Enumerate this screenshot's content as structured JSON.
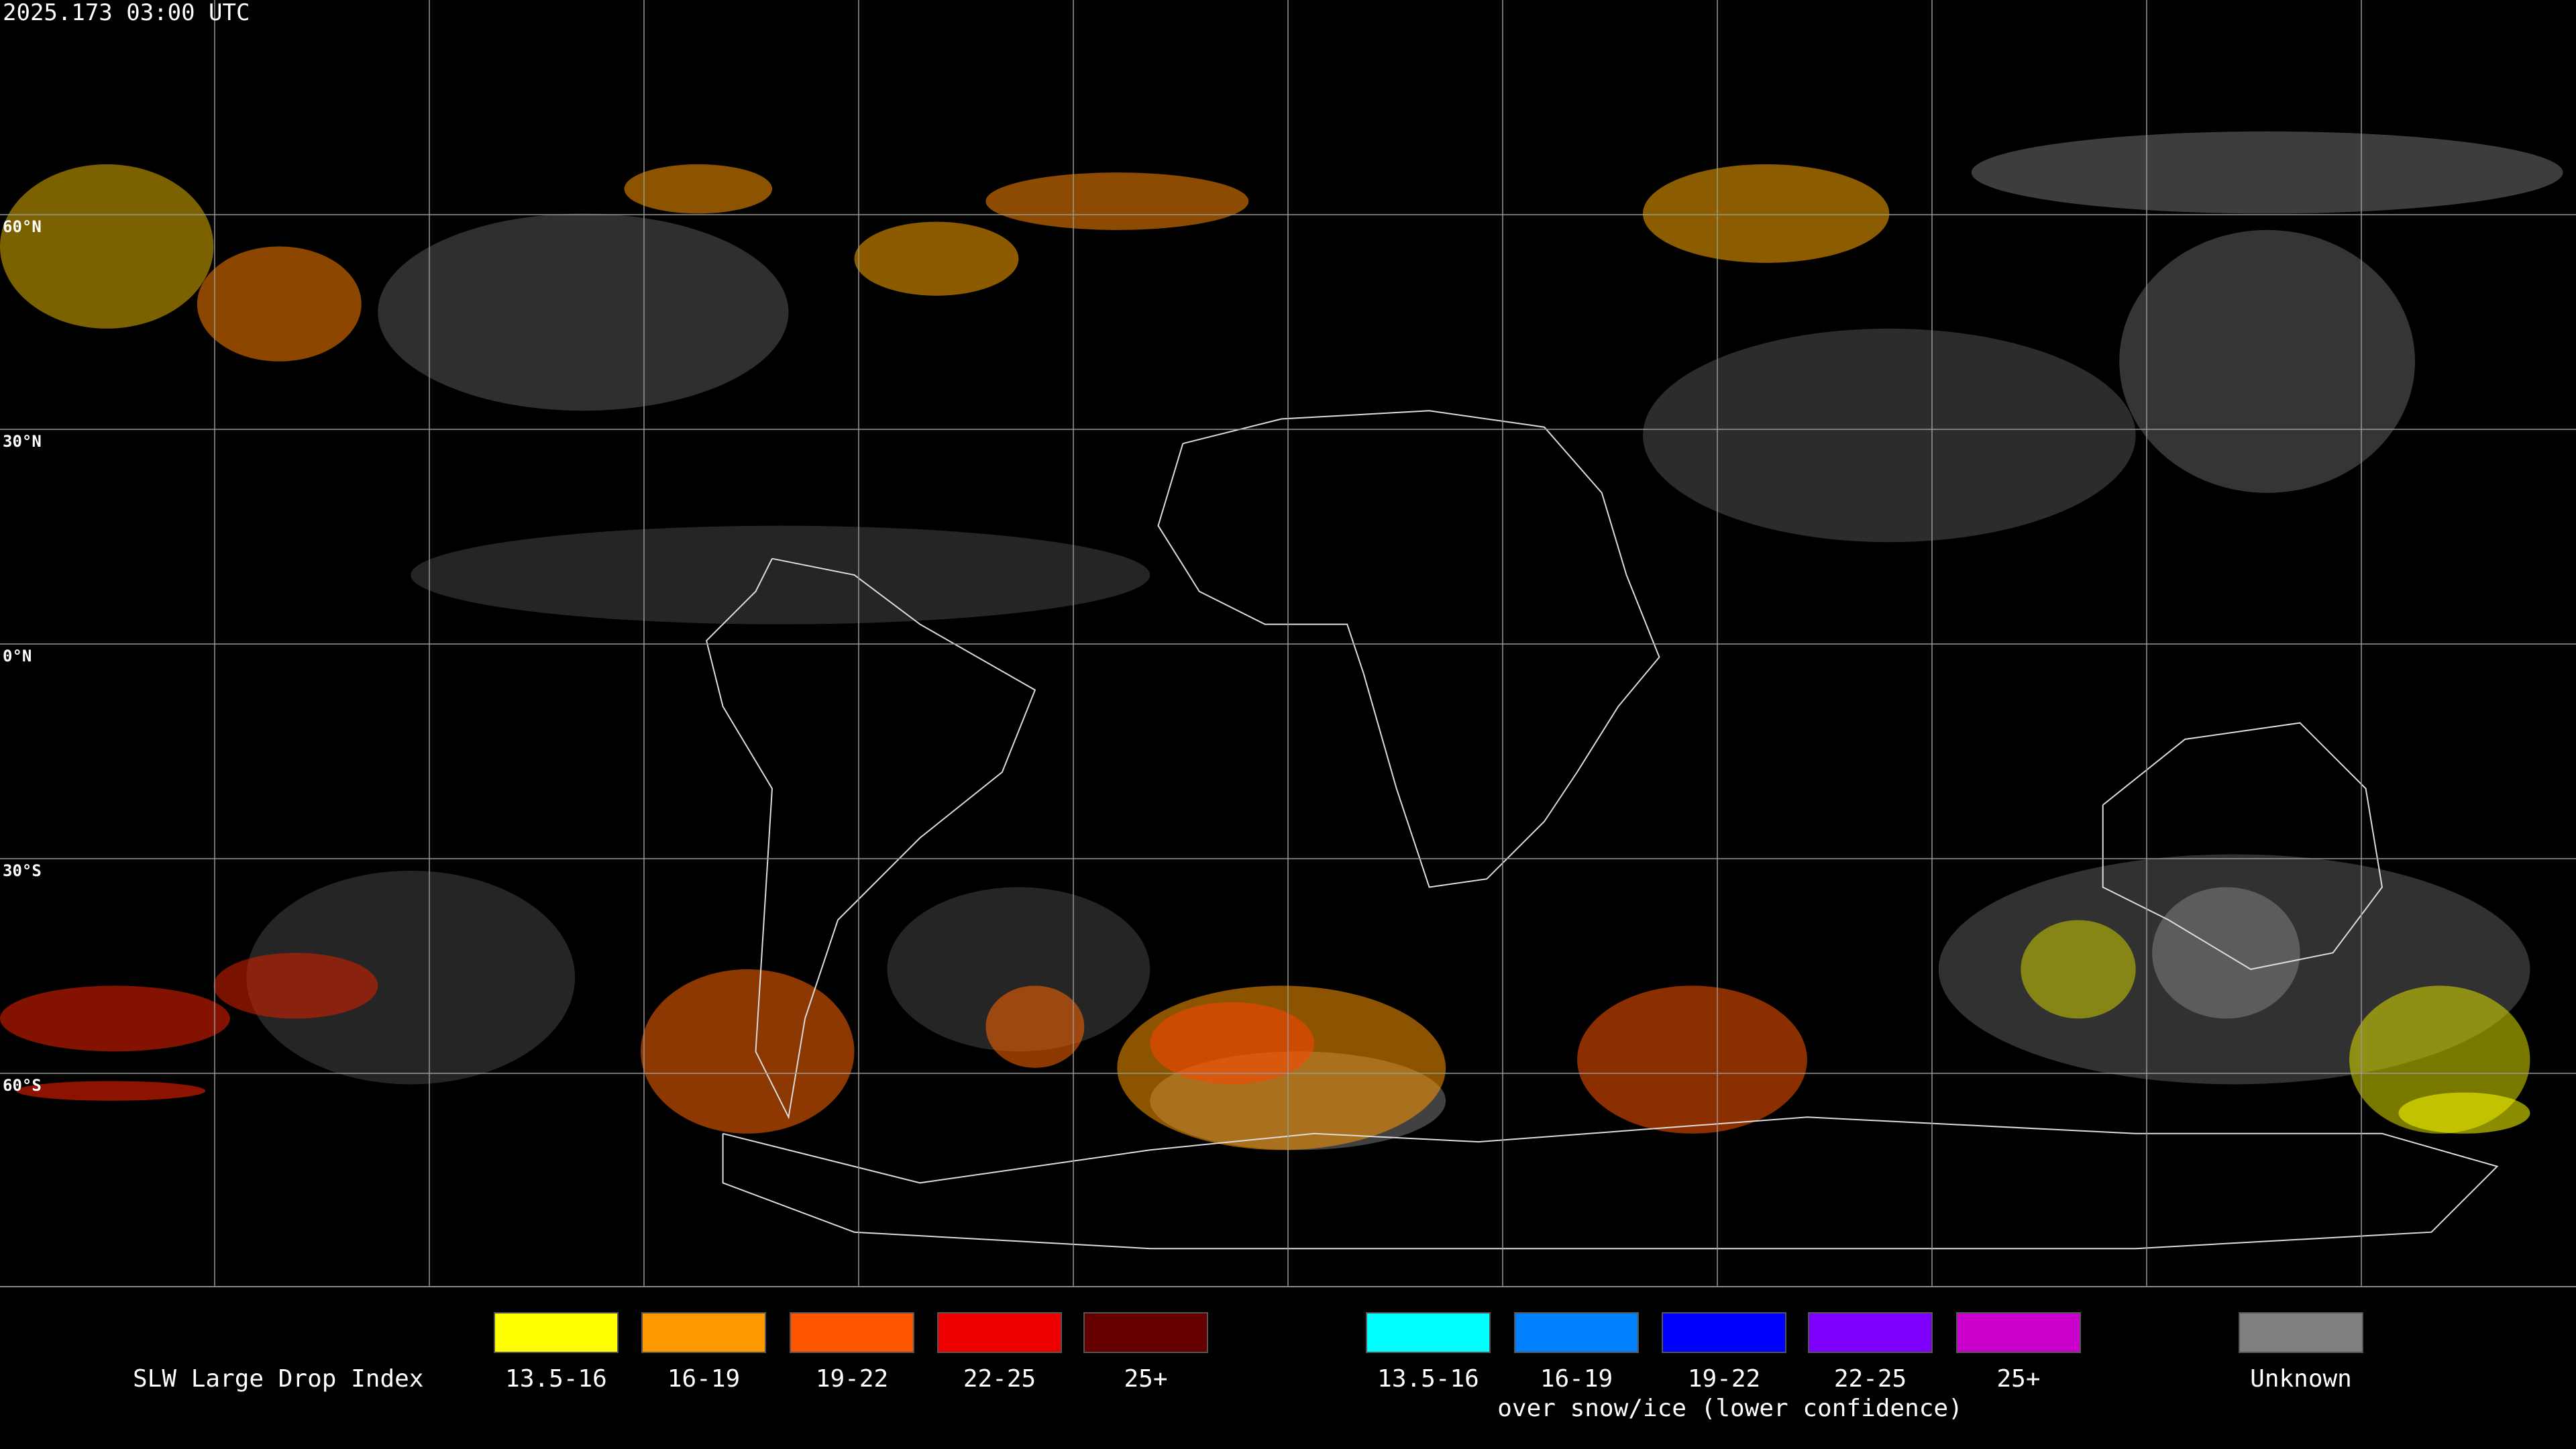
{
  "header": {
    "timestamp": "2025.173 03:00 UTC"
  },
  "map": {
    "latitude_labels": [
      "60°N",
      "30°N",
      "0°N",
      "30°S",
      "60°S"
    ]
  },
  "legend": {
    "title": "SLW Large Drop Index",
    "liquid": [
      {
        "label": "13.5-16",
        "color": "#ffff00"
      },
      {
        "label": "16-19",
        "color": "#ff9900"
      },
      {
        "label": "19-22",
        "color": "#ff5500"
      },
      {
        "label": "22-25",
        "color": "#ee0000"
      },
      {
        "label": "25+",
        "color": "#660000"
      }
    ],
    "snow_ice": [
      {
        "label": "13.5-16",
        "color": "#00ffff"
      },
      {
        "label": "16-19",
        "color": "#0080ff"
      },
      {
        "label": "19-22",
        "color": "#0000ff"
      },
      {
        "label": "22-25",
        "color": "#8000ff"
      },
      {
        "label": "25+",
        "color": "#cc00cc"
      }
    ],
    "snow_ice_note": "over snow/ice (lower confidence)",
    "unknown": {
      "label": "Unknown",
      "color": "#808080"
    }
  }
}
